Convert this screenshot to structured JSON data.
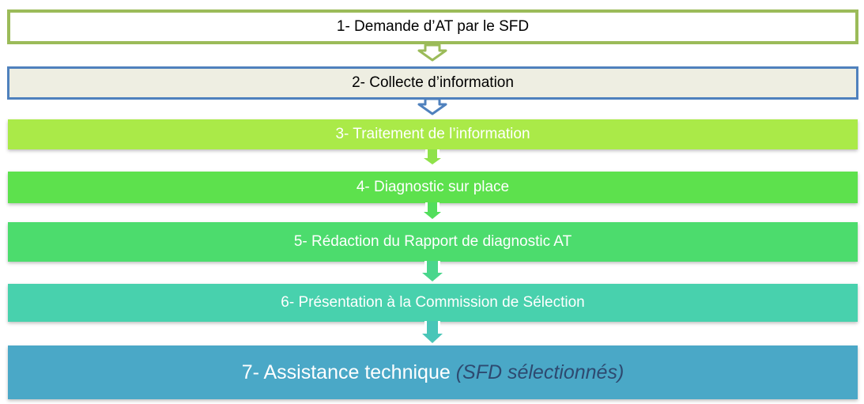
{
  "steps": [
    {
      "label": "1- Demande d’AT par le SFD",
      "note": ""
    },
    {
      "label": "2- Collecte d’information",
      "note": ""
    },
    {
      "label": "3- Traitement de l’information",
      "note": ""
    },
    {
      "label": "4- Diagnostic sur place",
      "note": ""
    },
    {
      "label": "5- Rédaction du Rapport de diagnostic AT",
      "note": ""
    },
    {
      "label": "6- Présentation à la Commission de Sélection",
      "note": ""
    },
    {
      "label": "7- Assistance technique ",
      "note": "(SFD sélectionnés)"
    }
  ],
  "colors": {
    "step1_border": "#9bbb59",
    "step1_fill": "#ffffff",
    "step2_border": "#4f81bd",
    "step2_fill": "#eeeee2",
    "step3_fill": "#aaea48",
    "step4_fill": "#5de14d",
    "step5_fill": "#4cdc6d",
    "step6_fill": "#48d1ad",
    "step7_fill": "#4aa8c7",
    "step7_note": "#2e4a70"
  }
}
